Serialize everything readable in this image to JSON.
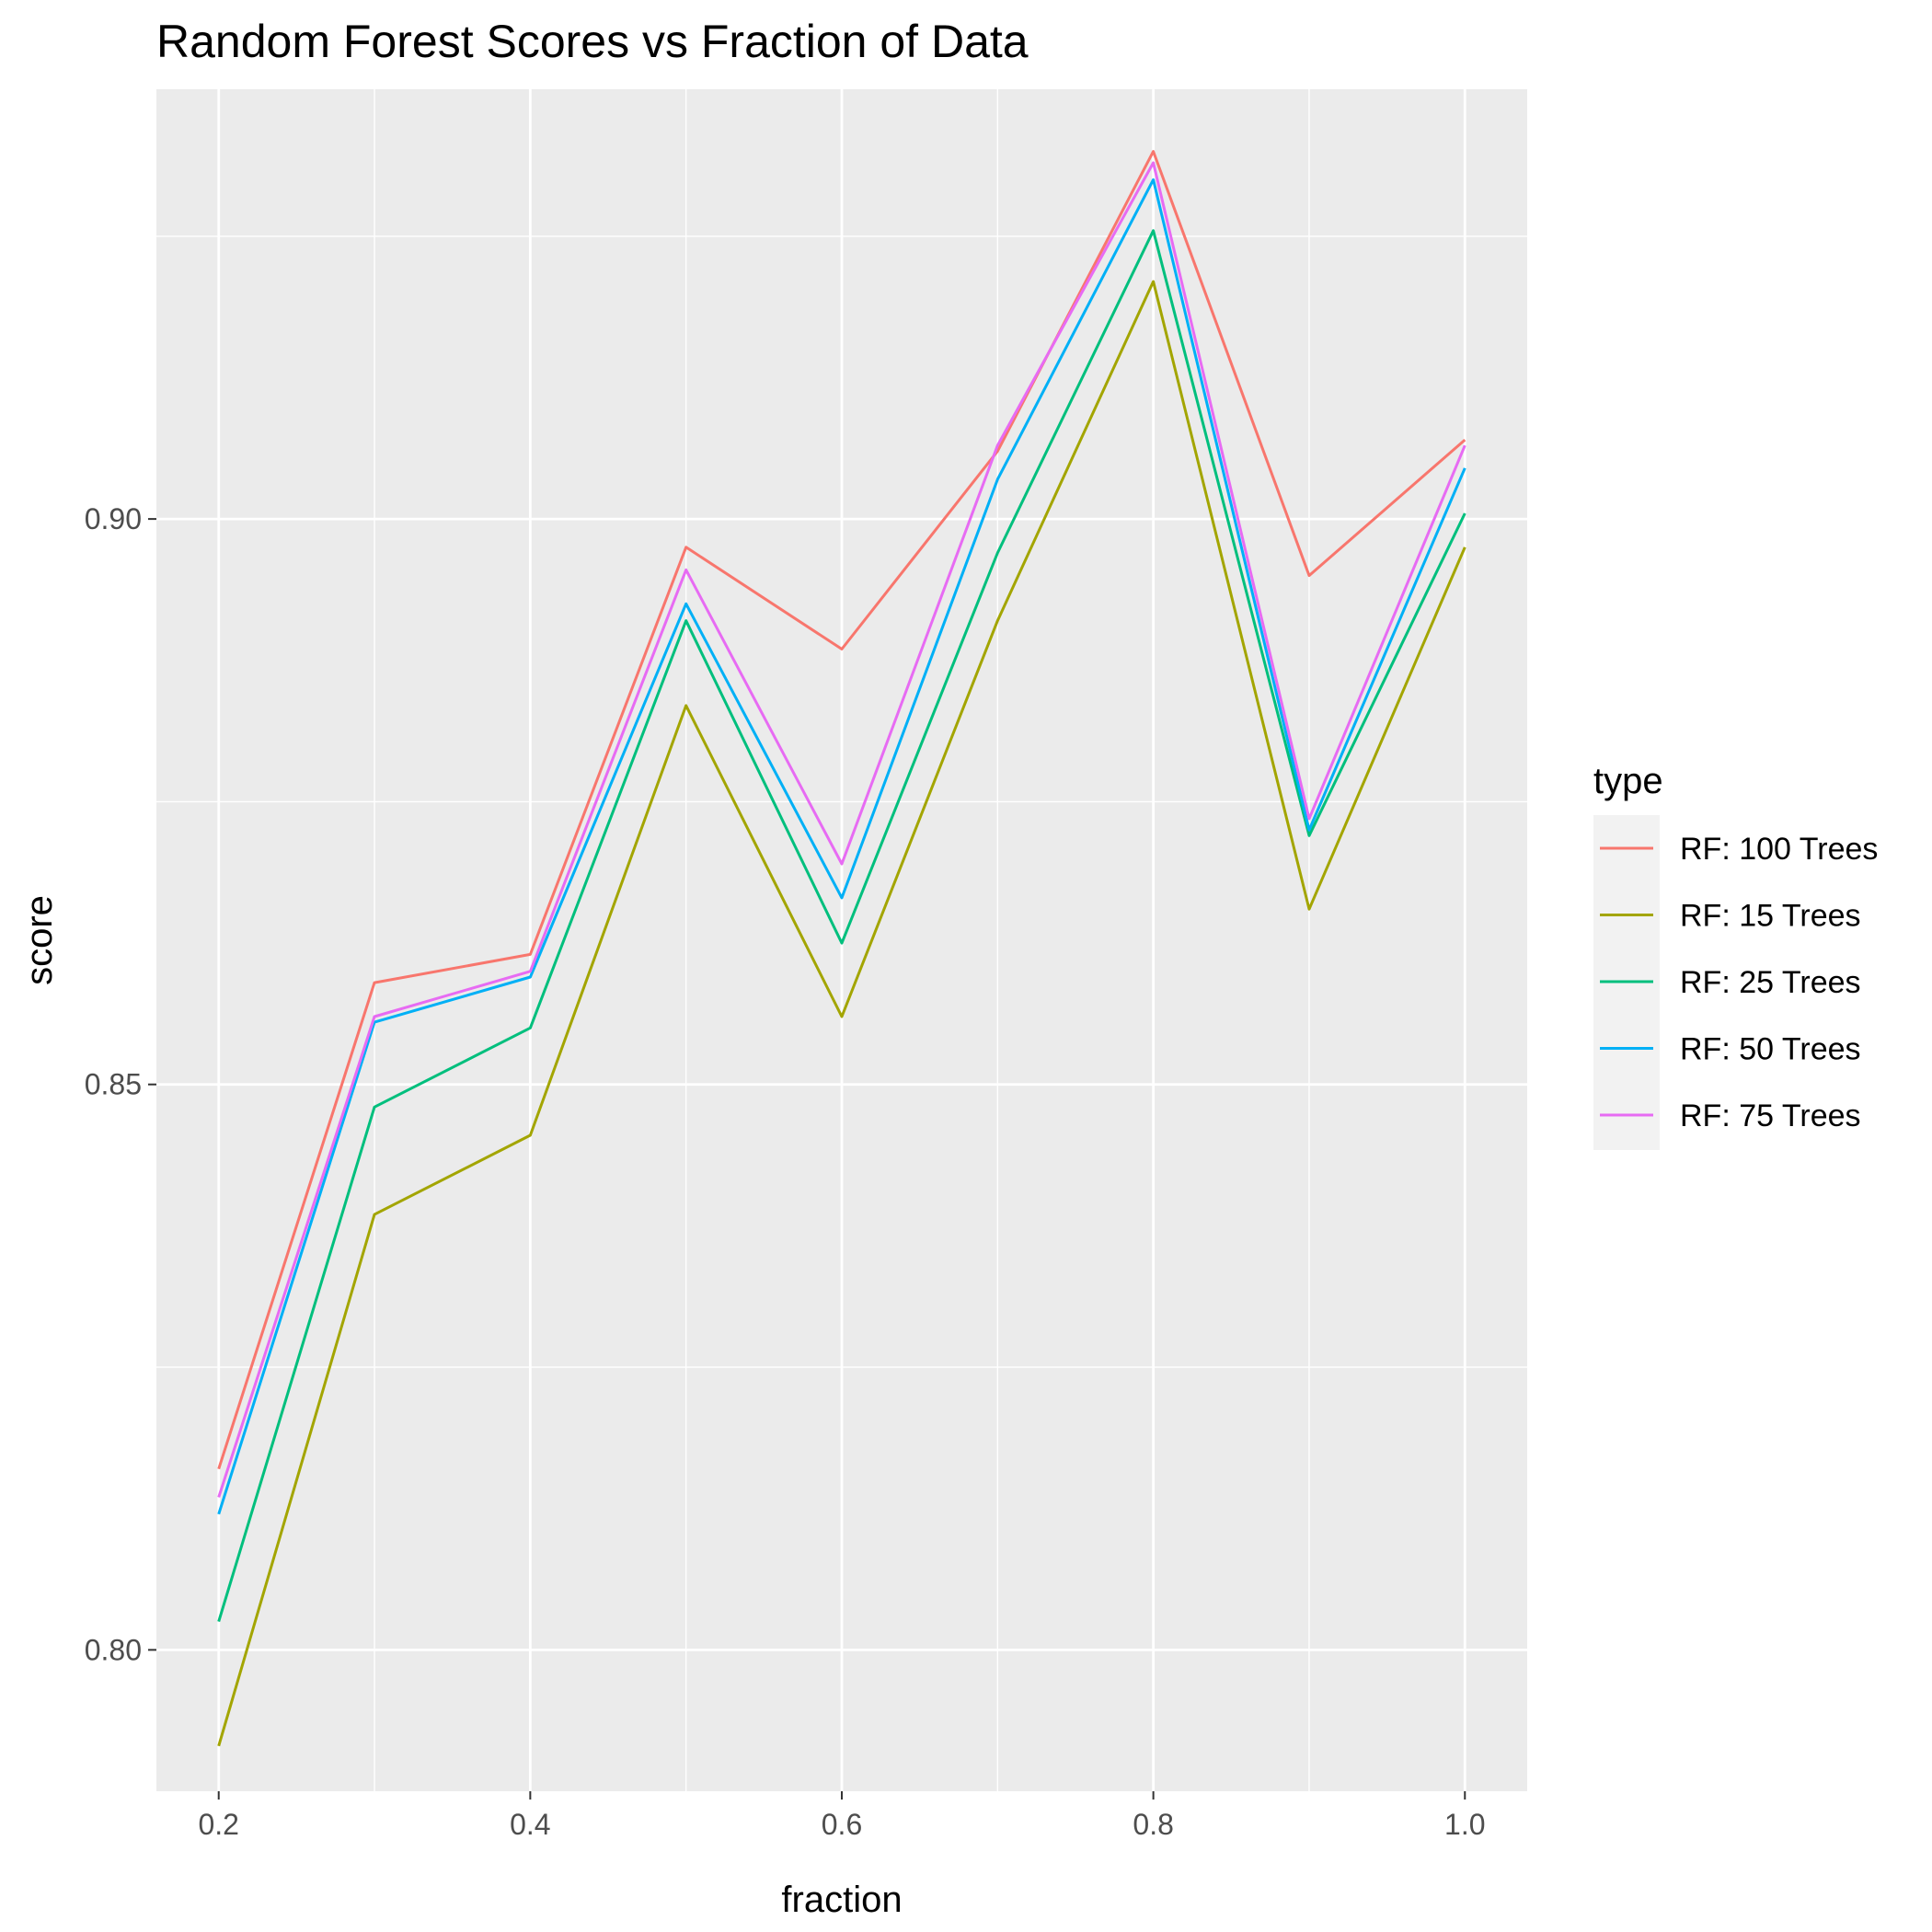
{
  "chart_data": {
    "type": "line",
    "title": "Random Forest Scores vs Fraction of Data",
    "xlabel": "fraction",
    "ylabel": "score",
    "x": [
      0.2,
      0.3,
      0.4,
      0.5,
      0.6,
      0.7,
      0.8,
      0.9,
      1.0
    ],
    "x_ticks": [
      0.2,
      0.4,
      0.6,
      0.8,
      1.0
    ],
    "x_tick_labels": [
      "0.2",
      "0.4",
      "0.6",
      "0.8",
      "1.0"
    ],
    "y_ticks": [
      0.8,
      0.85,
      0.9
    ],
    "y_tick_labels": [
      "0.80",
      "0.85",
      "0.90"
    ],
    "xlim": [
      0.16,
      1.04
    ],
    "ylim": [
      0.7875,
      0.938
    ],
    "grid": true,
    "legend": {
      "title": "type",
      "position": "right"
    },
    "series": [
      {
        "name": "RF: 100 Trees",
        "color": "#F8766D",
        "values": [
          0.816,
          0.859,
          0.8615,
          0.8975,
          0.8885,
          0.906,
          0.9325,
          0.895,
          0.907
        ]
      },
      {
        "name": "RF: 15 Trees",
        "color": "#A3A500",
        "values": [
          0.7915,
          0.8385,
          0.8455,
          0.8835,
          0.856,
          0.891,
          0.921,
          0.8655,
          0.8975
        ]
      },
      {
        "name": "RF: 25 Trees",
        "color": "#00BF7D",
        "values": [
          0.8025,
          0.848,
          0.855,
          0.891,
          0.8625,
          0.897,
          0.9255,
          0.872,
          0.9005
        ]
      },
      {
        "name": "RF: 50 Trees",
        "color": "#00B0F6",
        "values": [
          0.812,
          0.8555,
          0.8595,
          0.8925,
          0.8665,
          0.9035,
          0.93,
          0.8725,
          0.9045
        ]
      },
      {
        "name": "RF: 75 Trees",
        "color": "#E76BF3",
        "values": [
          0.8135,
          0.856,
          0.86,
          0.8955,
          0.8695,
          0.9065,
          0.9315,
          0.8735,
          0.9065
        ]
      }
    ]
  }
}
